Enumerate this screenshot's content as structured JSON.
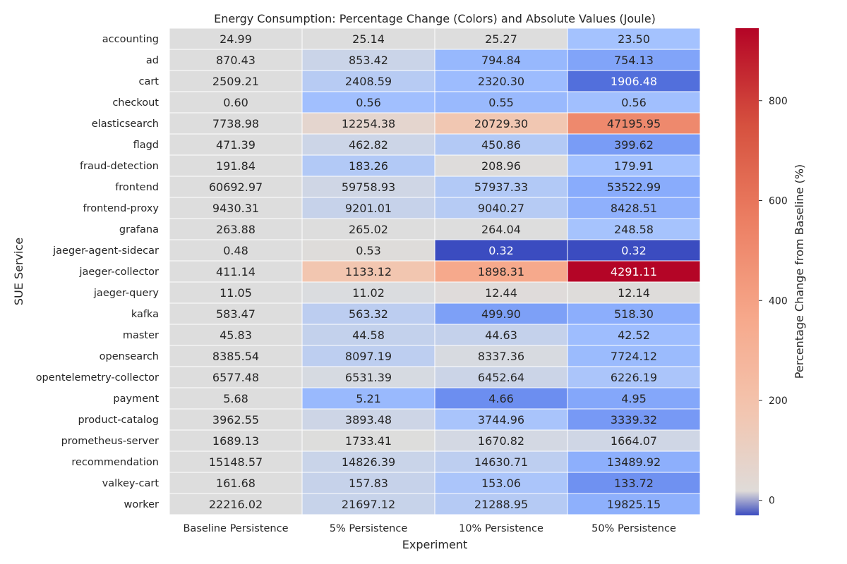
{
  "chart_data": {
    "type": "heatmap",
    "title": "Energy Consumption: Percentage Change (Colors) and Absolute Values (Joule)",
    "xlabel": "Experiment",
    "ylabel": "SUE Service",
    "colorbar_label": "Percentage Change from Baseline (%)",
    "colorbar_ticks": [
      0,
      200,
      400,
      600,
      800
    ],
    "colorbar_range": [
      -30,
      945
    ],
    "colormap": "coolwarm",
    "columns": [
      "Baseline Persistence",
      "5% Persistence",
      "10% Persistence",
      "50% Persistence"
    ],
    "rows": [
      {
        "service": "accounting",
        "values": [
          "24.99",
          "25.14",
          "25.27",
          "23.50"
        ],
        "pct": [
          0,
          0.6,
          1.1,
          -6.0
        ]
      },
      {
        "service": "ad",
        "values": [
          "870.43",
          "853.42",
          "794.84",
          "754.13"
        ],
        "pct": [
          0,
          -2.0,
          -8.7,
          -13.4
        ]
      },
      {
        "service": "cart",
        "values": [
          "2509.21",
          "2408.59",
          "2320.30",
          "1906.48"
        ],
        "pct": [
          0,
          -4.0,
          -7.5,
          -24.0
        ]
      },
      {
        "service": "checkout",
        "values": [
          "0.60",
          "0.56",
          "0.55",
          "0.56"
        ],
        "pct": [
          0,
          -6.7,
          -8.3,
          -6.7
        ]
      },
      {
        "service": "elasticsearch",
        "values": [
          "7738.98",
          "12254.38",
          "20729.30",
          "47195.95"
        ],
        "pct": [
          0,
          58.3,
          167.9,
          509.9
        ]
      },
      {
        "service": "flagd",
        "values": [
          "471.39",
          "462.82",
          "450.86",
          "399.62"
        ],
        "pct": [
          0,
          -1.8,
          -4.4,
          -15.2
        ]
      },
      {
        "service": "fraud-detection",
        "values": [
          "191.84",
          "183.26",
          "208.96",
          "179.91"
        ],
        "pct": [
          0,
          -4.5,
          8.9,
          -6.2
        ]
      },
      {
        "service": "frontend",
        "values": [
          "60692.97",
          "59758.93",
          "57937.33",
          "53522.99"
        ],
        "pct": [
          0,
          -1.5,
          -4.5,
          -11.8
        ]
      },
      {
        "service": "frontend-proxy",
        "values": [
          "9430.31",
          "9201.01",
          "9040.27",
          "8428.51"
        ],
        "pct": [
          0,
          -2.4,
          -4.1,
          -10.6
        ]
      },
      {
        "service": "grafana",
        "values": [
          "263.88",
          "265.02",
          "264.04",
          "248.58"
        ],
        "pct": [
          0,
          0.4,
          0.1,
          -5.8
        ]
      },
      {
        "service": "jaeger-agent-sidecar",
        "values": [
          "0.48",
          "0.53",
          "0.32",
          "0.32"
        ],
        "pct": [
          0,
          10.4,
          -33.3,
          -33.3
        ]
      },
      {
        "service": "jaeger-collector",
        "values": [
          "411.14",
          "1133.12",
          "1898.31",
          "4291.11"
        ],
        "pct": [
          0,
          175.6,
          361.7,
          943.7
        ]
      },
      {
        "service": "jaeger-query",
        "values": [
          "11.05",
          "11.02",
          "12.44",
          "12.14"
        ],
        "pct": [
          0,
          -0.3,
          12.6,
          9.9
        ]
      },
      {
        "service": "kafka",
        "values": [
          "583.47",
          "563.32",
          "499.90",
          "518.30"
        ],
        "pct": [
          0,
          -3.5,
          -14.3,
          -11.2
        ]
      },
      {
        "service": "master",
        "values": [
          "45.83",
          "44.58",
          "44.63",
          "42.52"
        ],
        "pct": [
          0,
          -2.7,
          -2.6,
          -7.2
        ]
      },
      {
        "service": "opensearch",
        "values": [
          "8385.54",
          "8097.19",
          "8337.36",
          "7724.12"
        ],
        "pct": [
          0,
          -3.4,
          -0.6,
          -7.9
        ]
      },
      {
        "service": "opentelemetry-collector",
        "values": [
          "6577.48",
          "6531.39",
          "6452.64",
          "6226.19"
        ],
        "pct": [
          0,
          -0.7,
          -1.9,
          -5.3
        ]
      },
      {
        "service": "payment",
        "values": [
          "5.68",
          "5.21",
          "4.66",
          "4.95"
        ],
        "pct": [
          0,
          -8.3,
          -18.0,
          -12.9
        ]
      },
      {
        "service": "product-catalog",
        "values": [
          "3962.55",
          "3893.48",
          "3744.96",
          "3339.32"
        ],
        "pct": [
          0,
          -1.7,
          -5.5,
          -15.7
        ]
      },
      {
        "service": "prometheus-server",
        "values": [
          "1689.13",
          "1733.41",
          "1670.82",
          "1664.07"
        ],
        "pct": [
          0,
          2.6,
          -1.1,
          -1.5
        ]
      },
      {
        "service": "recommendation",
        "values": [
          "15148.57",
          "14826.39",
          "14630.71",
          "13489.92"
        ],
        "pct": [
          0,
          -2.1,
          -3.4,
          -10.9
        ]
      },
      {
        "service": "valkey-cart",
        "values": [
          "161.68",
          "157.83",
          "153.06",
          "133.72"
        ],
        "pct": [
          0,
          -2.4,
          -5.3,
          -17.3
        ]
      },
      {
        "service": "worker",
        "values": [
          "22216.02",
          "21697.12",
          "21288.95",
          "19825.15"
        ],
        "pct": [
          0,
          -2.3,
          -4.2,
          -10.8
        ]
      }
    ]
  }
}
